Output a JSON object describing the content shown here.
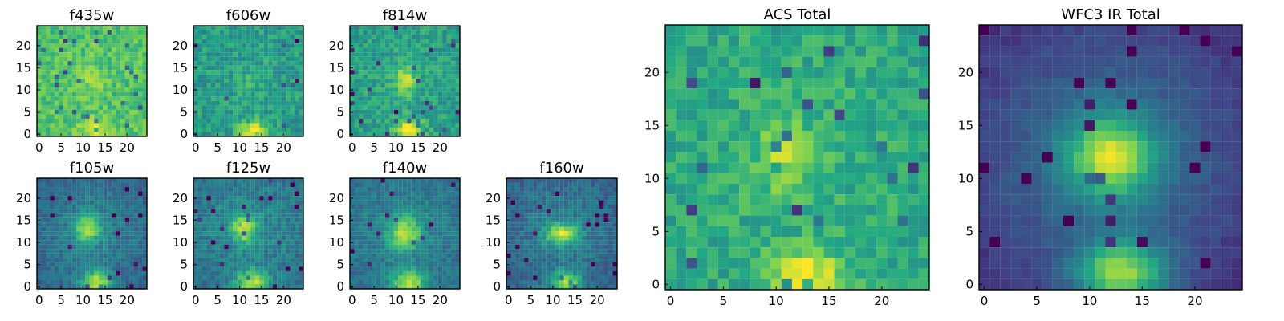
{
  "chart_data": {
    "type": "heatmap",
    "colormap": {
      "name": "viridis",
      "stops": [
        "#440154",
        "#414487",
        "#2a788e",
        "#22a884",
        "#7ad151",
        "#fde725"
      ]
    },
    "grid": false,
    "panels": [
      {
        "key": "f435w",
        "title": "f435w",
        "size": 25,
        "xticks": [
          0,
          5,
          10,
          15,
          20
        ],
        "yticks": [
          0,
          5,
          10,
          15,
          20
        ],
        "xlim": [
          0,
          25
        ],
        "ylim": [
          0,
          25
        ],
        "seed": 11,
        "base": 0.72,
        "noise": 0.22,
        "sources": [
          {
            "x": 13,
            "y": 1,
            "sx": 2.6,
            "sy": 1.8,
            "amp": 0.22
          },
          {
            "x": 12,
            "y": 12,
            "sx": 2.2,
            "sy": 2.2,
            "amp": 0.08
          }
        ],
        "edgeDarkening": 0.0
      },
      {
        "key": "f606w",
        "title": "f606w",
        "size": 25,
        "xticks": [
          0,
          5,
          10,
          15,
          20
        ],
        "yticks": [
          0,
          5,
          10,
          15,
          20
        ],
        "xlim": [
          0,
          25
        ],
        "ylim": [
          0,
          25
        ],
        "seed": 29,
        "base": 0.56,
        "noise": 0.24,
        "sources": [
          {
            "x": 13,
            "y": 1,
            "sx": 2.2,
            "sy": 1.7,
            "amp": 0.43
          },
          {
            "x": 12,
            "y": 12,
            "sx": 2.0,
            "sy": 2.0,
            "amp": 0.08
          }
        ],
        "edgeDarkening": 0.02
      },
      {
        "key": "f814w",
        "title": "f814w",
        "size": 25,
        "xticks": [
          0,
          5,
          10,
          15,
          20
        ],
        "yticks": [
          0,
          5,
          10,
          15,
          20
        ],
        "xlim": [
          0,
          25
        ],
        "ylim": [
          0,
          25
        ],
        "seed": 47,
        "base": 0.58,
        "noise": 0.23,
        "sources": [
          {
            "x": 12,
            "y": 12,
            "sx": 1.8,
            "sy": 2.2,
            "amp": 0.33
          },
          {
            "x": 13,
            "y": 1,
            "sx": 2.2,
            "sy": 1.6,
            "amp": 0.44
          }
        ],
        "edgeDarkening": 0.03
      },
      {
        "key": "f105w",
        "title": "f105w",
        "size": 25,
        "xticks": [
          0,
          5,
          10,
          15,
          20
        ],
        "yticks": [
          0,
          5,
          10,
          15,
          20
        ],
        "xlim": [
          0,
          25
        ],
        "ylim": [
          0,
          25
        ],
        "seed": 61,
        "base": 0.42,
        "noise": 0.16,
        "sources": [
          {
            "x": 11,
            "y": 13,
            "sx": 2.0,
            "sy": 2.1,
            "amp": 0.48
          },
          {
            "x": 13,
            "y": 1,
            "sx": 2.4,
            "sy": 1.7,
            "amp": 0.56
          }
        ],
        "edgeDarkening": 0.12
      },
      {
        "key": "f125w",
        "title": "f125w",
        "size": 25,
        "xticks": [
          0,
          5,
          10,
          15,
          20
        ],
        "yticks": [
          0,
          5,
          10,
          15,
          20
        ],
        "xlim": [
          0,
          25
        ],
        "ylim": [
          0,
          25
        ],
        "seed": 73,
        "base": 0.45,
        "noise": 0.19,
        "sources": [
          {
            "x": 11,
            "y": 13,
            "sx": 2.1,
            "sy": 2.3,
            "amp": 0.46
          },
          {
            "x": 13,
            "y": 1,
            "sx": 2.5,
            "sy": 1.8,
            "amp": 0.52
          }
        ],
        "edgeDarkening": 0.08
      },
      {
        "key": "f140w",
        "title": "f140w",
        "size": 25,
        "xticks": [
          0,
          5,
          10,
          15,
          20
        ],
        "yticks": [
          0,
          5,
          10,
          15,
          20
        ],
        "xlim": [
          0,
          25
        ],
        "ylim": [
          0,
          25
        ],
        "seed": 89,
        "base": 0.44,
        "noise": 0.16,
        "sources": [
          {
            "x": 12,
            "y": 12,
            "sx": 2.4,
            "sy": 2.5,
            "amp": 0.49
          },
          {
            "x": 13,
            "y": 1,
            "sx": 2.6,
            "sy": 1.9,
            "amp": 0.5
          }
        ],
        "edgeDarkening": 0.08
      },
      {
        "key": "f160w",
        "title": "f160w",
        "size": 25,
        "xticks": [
          0,
          5,
          10,
          15,
          20
        ],
        "yticks": [
          0,
          5,
          10,
          15,
          20
        ],
        "xlim": [
          0,
          25
        ],
        "ylim": [
          0,
          25
        ],
        "seed": 97,
        "base": 0.4,
        "noise": 0.17,
        "sources": [
          {
            "x": 12,
            "y": 12,
            "sx": 2.7,
            "sy": 1.6,
            "amp": 0.53
          },
          {
            "x": 13,
            "y": 1,
            "sx": 2.4,
            "sy": 1.7,
            "amp": 0.48
          }
        ],
        "edgeDarkening": 0.1
      },
      {
        "key": "acs_total",
        "title": "ACS Total",
        "size": 25,
        "xticks": [
          0,
          5,
          10,
          15,
          20
        ],
        "yticks": [
          0,
          5,
          10,
          15,
          20
        ],
        "xlim": [
          0,
          25
        ],
        "ylim": [
          0,
          25
        ],
        "seed": 131,
        "base": 0.63,
        "noise": 0.22,
        "sources": [
          {
            "x": 11,
            "y": 12,
            "sx": 1.8,
            "sy": 2.4,
            "amp": 0.25
          },
          {
            "x": 13,
            "y": 1,
            "sx": 2.6,
            "sy": 1.6,
            "amp": 0.36
          }
        ],
        "edgeDarkening": 0.05
      },
      {
        "key": "wfc3_ir_total",
        "title": "WFC3 IR Total",
        "size": 25,
        "xticks": [
          0,
          5,
          10,
          15,
          20
        ],
        "yticks": [
          0,
          5,
          10,
          15,
          20
        ],
        "xlim": [
          0,
          25
        ],
        "ylim": [
          0,
          25
        ],
        "seed": 173,
        "base": 0.33,
        "noise": 0.07,
        "sources": [
          {
            "x": 12,
            "y": 12,
            "sx": 2.8,
            "sy": 2.6,
            "amp": 0.63
          },
          {
            "x": 13,
            "y": 1,
            "sx": 3.0,
            "sy": 2.1,
            "amp": 0.62
          }
        ],
        "edgeDarkening": 0.2
      }
    ]
  }
}
